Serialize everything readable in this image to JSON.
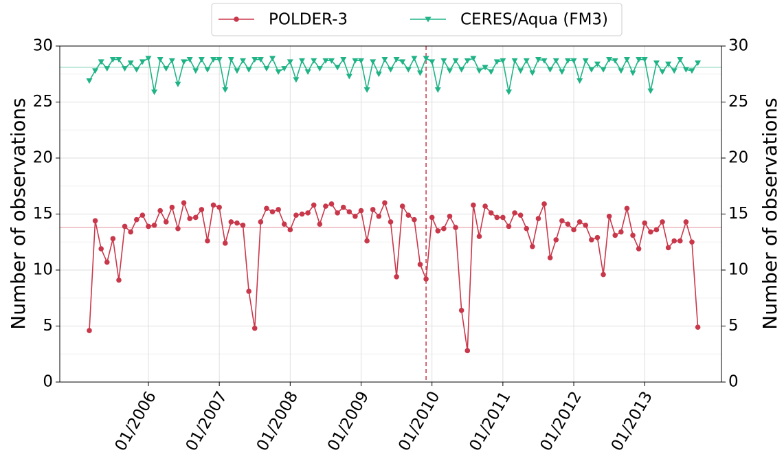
{
  "chart_data": {
    "type": "line",
    "ylabel": "Number of observations",
    "y2label": "Number of observations",
    "ylim": [
      0,
      30
    ],
    "yticks": [
      0,
      5,
      10,
      15,
      20,
      25,
      30
    ],
    "y2lim": [
      0,
      30
    ],
    "y2ticks": [
      0,
      5,
      10,
      15,
      20,
      25,
      30
    ],
    "minor_yticks": [
      2.5,
      7.5,
      12.5,
      17.5,
      22.5,
      27.5
    ],
    "grid": true,
    "legend": "top",
    "xlim": [
      "2004-10",
      "2014-02"
    ],
    "xticks": [
      {
        "value": "2006-01",
        "label": "01/2006"
      },
      {
        "value": "2007-01",
        "label": "01/2007"
      },
      {
        "value": "2008-01",
        "label": "01/2008"
      },
      {
        "value": "2009-01",
        "label": "01/2009"
      },
      {
        "value": "2010-01",
        "label": "01/2010"
      },
      {
        "value": "2011-01",
        "label": "01/2011"
      },
      {
        "value": "2012-01",
        "label": "01/2012"
      },
      {
        "value": "2013-01",
        "label": "01/2013"
      }
    ],
    "vline": {
      "x": "2009-12",
      "color": "#c8374a"
    },
    "reference_lines": [
      {
        "value": 13.8,
        "color": "#e8a0aa"
      },
      {
        "value": 28.1,
        "color": "#9fdcc6"
      }
    ],
    "x": [
      "2005-03",
      "2005-04",
      "2005-05",
      "2005-06",
      "2005-07",
      "2005-08",
      "2005-09",
      "2005-10",
      "2005-11",
      "2005-12",
      "2006-01",
      "2006-02",
      "2006-03",
      "2006-04",
      "2006-05",
      "2006-06",
      "2006-07",
      "2006-08",
      "2006-09",
      "2006-10",
      "2006-11",
      "2006-12",
      "2007-01",
      "2007-02",
      "2007-03",
      "2007-04",
      "2007-05",
      "2007-06",
      "2007-07",
      "2007-08",
      "2007-09",
      "2007-10",
      "2007-11",
      "2007-12",
      "2008-01",
      "2008-02",
      "2008-03",
      "2008-04",
      "2008-05",
      "2008-06",
      "2008-07",
      "2008-08",
      "2008-09",
      "2008-10",
      "2008-11",
      "2008-12",
      "2009-01",
      "2009-02",
      "2009-03",
      "2009-04",
      "2009-05",
      "2009-06",
      "2009-07",
      "2009-08",
      "2009-09",
      "2009-10",
      "2009-11",
      "2009-12",
      "2010-01",
      "2010-02",
      "2010-03",
      "2010-04",
      "2010-05",
      "2010-06",
      "2010-07",
      "2010-08",
      "2010-09",
      "2010-10",
      "2010-11",
      "2010-12",
      "2011-01",
      "2011-02",
      "2011-03",
      "2011-04",
      "2011-05",
      "2011-06",
      "2011-07",
      "2011-08",
      "2011-09",
      "2011-10",
      "2011-11",
      "2011-12",
      "2012-01",
      "2012-02",
      "2012-03",
      "2012-04",
      "2012-05",
      "2012-06",
      "2012-07",
      "2012-08",
      "2012-09",
      "2012-10",
      "2012-11",
      "2012-12",
      "2013-01",
      "2013-02",
      "2013-03",
      "2013-04",
      "2013-05",
      "2013-06",
      "2013-07",
      "2013-08",
      "2013-09",
      "2013-10"
    ],
    "series": [
      {
        "name": "POLDER-3",
        "color": "#c8374a",
        "marker": "circle",
        "values": [
          4.6,
          14.4,
          11.9,
          10.7,
          12.8,
          9.1,
          13.9,
          13.4,
          14.5,
          14.9,
          13.9,
          14.0,
          15.3,
          14.3,
          15.6,
          13.7,
          16.0,
          14.6,
          14.7,
          15.4,
          12.6,
          15.8,
          15.6,
          12.4,
          14.3,
          14.2,
          14.0,
          8.1,
          4.8,
          14.3,
          15.5,
          15.2,
          15.4,
          14.1,
          13.6,
          14.9,
          15.0,
          15.1,
          15.8,
          14.1,
          15.7,
          15.9,
          15.1,
          15.6,
          15.2,
          14.8,
          15.3,
          12.6,
          15.4,
          14.8,
          16.0,
          14.3,
          9.4,
          15.7,
          14.9,
          14.5,
          10.5,
          9.2,
          14.7,
          13.5,
          13.7,
          14.8,
          13.8,
          6.4,
          2.8,
          15.8,
          13.0,
          15.7,
          15.1,
          14.7,
          14.7,
          13.9,
          15.1,
          14.9,
          13.7,
          12.1,
          14.6,
          15.9,
          11.1,
          12.7,
          14.4,
          14.1,
          13.6,
          14.3,
          14.0,
          12.7,
          12.9,
          9.6,
          14.8,
          13.1,
          13.4,
          15.5,
          13.1,
          11.9,
          14.2,
          13.4,
          13.6,
          14.3,
          12.0,
          12.6,
          12.6,
          14.3,
          12.5,
          4.9
        ]
      },
      {
        "name": "CERES/Aqua (FM3)",
        "color": "#1fb386",
        "marker": "triangle-down",
        "values": [
          26.9,
          27.8,
          28.6,
          28.0,
          28.8,
          28.8,
          28.0,
          28.5,
          27.9,
          28.6,
          28.9,
          25.9,
          28.8,
          28.0,
          28.7,
          26.6,
          28.6,
          28.8,
          27.8,
          28.8,
          27.9,
          28.8,
          28.8,
          26.1,
          28.8,
          27.8,
          28.7,
          27.9,
          28.8,
          28.8,
          28.0,
          28.9,
          27.7,
          28.0,
          28.6,
          27.0,
          28.7,
          27.7,
          28.7,
          28.0,
          28.7,
          28.7,
          28.1,
          28.8,
          27.3,
          28.7,
          28.7,
          26.1,
          28.6,
          27.5,
          28.8,
          27.9,
          28.8,
          28.6,
          27.9,
          28.9,
          27.6,
          28.9,
          28.6,
          26.1,
          28.7,
          27.8,
          28.7,
          27.9,
          28.7,
          28.9,
          27.8,
          28.1,
          27.7,
          28.6,
          28.7,
          25.9,
          28.7,
          27.8,
          28.7,
          27.6,
          28.8,
          28.7,
          27.9,
          28.7,
          27.7,
          28.7,
          28.7,
          26.9,
          28.7,
          27.9,
          28.4,
          27.9,
          28.8,
          28.7,
          27.8,
          28.8,
          27.6,
          28.8,
          28.8,
          26.0,
          28.5,
          27.7,
          28.4,
          27.8,
          28.8,
          27.9,
          27.8,
          28.5
        ]
      }
    ]
  }
}
